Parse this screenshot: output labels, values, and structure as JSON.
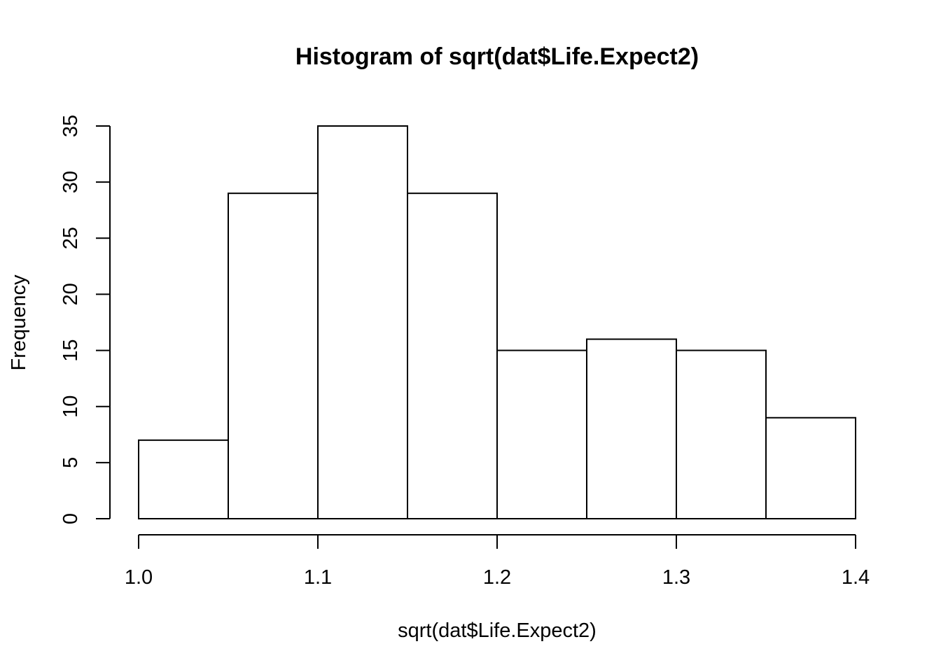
{
  "chart_data": {
    "type": "bar",
    "title": "Histogram of sqrt(dat$Life.Expect2)",
    "xlabel": "sqrt(dat$Life.Expect2)",
    "ylabel": "Frequency",
    "bins": [
      {
        "x0": 1.0,
        "x1": 1.05,
        "count": 7
      },
      {
        "x0": 1.05,
        "x1": 1.1,
        "count": 29
      },
      {
        "x0": 1.1,
        "x1": 1.15,
        "count": 35
      },
      {
        "x0": 1.15,
        "x1": 1.2,
        "count": 29
      },
      {
        "x0": 1.2,
        "x1": 1.25,
        "count": 15
      },
      {
        "x0": 1.25,
        "x1": 1.3,
        "count": 16
      },
      {
        "x0": 1.3,
        "x1": 1.35,
        "count": 15
      },
      {
        "x0": 1.35,
        "x1": 1.4,
        "count": 9
      }
    ],
    "xlim": [
      1.0,
      1.4
    ],
    "ylim": [
      0,
      35
    ],
    "x_ticks": [
      "1.0",
      "1.1",
      "1.2",
      "1.3",
      "1.4"
    ],
    "y_ticks": [
      "0",
      "5",
      "10",
      "15",
      "20",
      "25",
      "30",
      "35"
    ],
    "grid": false,
    "colors": {
      "bar_fill": "#ffffff",
      "bar_stroke": "#000000"
    }
  }
}
